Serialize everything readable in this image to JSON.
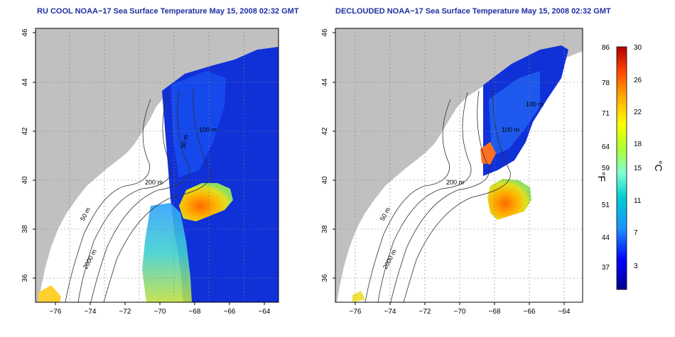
{
  "panels": [
    {
      "title": "RU COOL NOAA−17 Sea Surface Temperature May 15, 2008 02:32 GMT",
      "contour_labels": [
        "200 m",
        "50 m",
        "2000 m",
        "100 m",
        "50 m"
      ]
    },
    {
      "title": "DECLOUDED NOAA−17 Sea Surface Temperature May 15, 2008 02:32 GMT",
      "contour_labels": [
        "200 m",
        "50 m",
        "2000 m",
        "100 m",
        "100 m"
      ]
    }
  ],
  "axes": {
    "lon_ticks": [
      "−76",
      "−74",
      "−72",
      "−70",
      "−68",
      "−66",
      "−64"
    ],
    "lat_ticks": [
      "46",
      "44",
      "42",
      "40",
      "38",
      "36"
    ]
  },
  "colorbar": {
    "f_ticks": [
      "86",
      "78",
      "71",
      "64",
      "59",
      "51",
      "44",
      "37"
    ],
    "c_ticks": [
      "30",
      "26",
      "22",
      "18",
      "15",
      "11",
      "7",
      "3"
    ],
    "f_unit": "°F",
    "c_unit": "°C",
    "colors": [
      "#00008b",
      "#0000ff",
      "#1e90ff",
      "#00ced1",
      "#7fffd4",
      "#adff2f",
      "#ffff00",
      "#ffa500",
      "#ff4500",
      "#b00000"
    ]
  },
  "map_colors": {
    "land": "#c0c0c0",
    "no_data": "#ffffff",
    "cold_water": "#1030d8",
    "warm_eddy": "#ff8c1a"
  }
}
